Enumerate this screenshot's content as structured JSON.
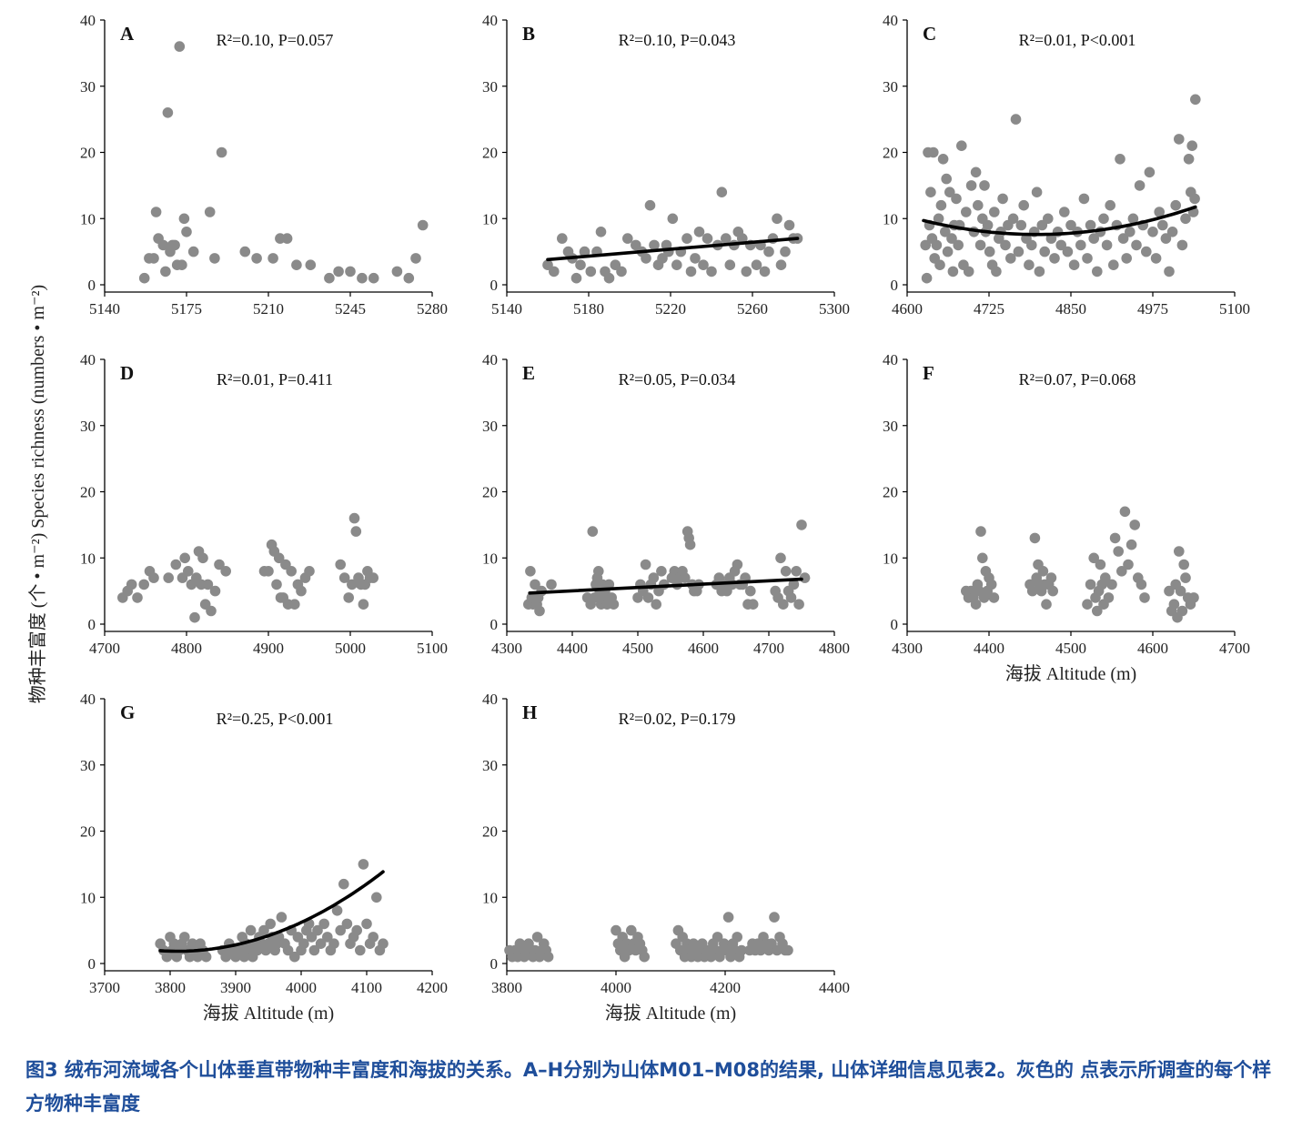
{
  "figure": {
    "y_axis_title": "物种丰富度 (个 • m⁻²)  Species richness (numbers • m⁻²)",
    "x_axis_title": "海拔 Altitude (m)"
  },
  "caption": "图3 绒布河流域各个山体垂直带物种丰富度和海拔的关系。A–H分别为山体M01–M08的结果, 山体详细信息见表2。灰色的 点表示所调查的每个样方物种丰富度",
  "colors": {
    "points": "#8a8a8a",
    "fit_line": "#000000",
    "caption": "#1f4e9a"
  },
  "chart_data": [
    {
      "type": "scatter",
      "letter": "A",
      "stat": "R²=0.10, P=0.057",
      "xlim": [
        5140,
        5280
      ],
      "xticks": [
        5140,
        5175,
        5210,
        5245,
        5280
      ],
      "ylim": [
        0,
        40
      ],
      "yticks": [
        0,
        10,
        20,
        30,
        40
      ],
      "fit": null,
      "x": [
        5157,
        5159,
        5161,
        5162,
        5163,
        5165,
        5166,
        5167,
        5168,
        5169,
        5170,
        5171,
        5172,
        5173,
        5174,
        5175,
        5178,
        5185,
        5187,
        5190,
        5200,
        5205,
        5212,
        5215,
        5218,
        5222,
        5228,
        5236,
        5240,
        5245,
        5250,
        5255,
        5265,
        5270,
        5273,
        5276
      ],
      "y": [
        1,
        4,
        4,
        11,
        7,
        6,
        2,
        26,
        5,
        6,
        6,
        3,
        36,
        3,
        10,
        8,
        5,
        11,
        4,
        20,
        5,
        4,
        4,
        7,
        7,
        3,
        3,
        1,
        2,
        2,
        1,
        1,
        2,
        1,
        4,
        9
      ]
    },
    {
      "type": "scatter",
      "letter": "B",
      "stat": "R²=0.10, P=0.043",
      "xlim": [
        5140,
        5300
      ],
      "xticks": [
        5140,
        5180,
        5220,
        5260,
        5300
      ],
      "ylim": [
        0,
        40
      ],
      "yticks": [
        0,
        10,
        20,
        30,
        40
      ],
      "fit": {
        "kind": "linear",
        "x": [
          5160,
          5282
        ],
        "y": [
          3.8,
          7.0
        ]
      },
      "x": [
        5160,
        5163,
        5167,
        5170,
        5172,
        5174,
        5176,
        5178,
        5181,
        5184,
        5186,
        5188,
        5190,
        5193,
        5196,
        5199,
        5203,
        5206,
        5208,
        5210,
        5212,
        5214,
        5216,
        5218,
        5219,
        5221,
        5223,
        5225,
        5228,
        5230,
        5232,
        5234,
        5236,
        5238,
        5240,
        5243,
        5245,
        5247,
        5249,
        5251,
        5253,
        5255,
        5257,
        5259,
        5262,
        5264,
        5266,
        5268,
        5270,
        5272,
        5274,
        5276,
        5278,
        5280,
        5282
      ],
      "y": [
        3,
        2,
        7,
        5,
        4,
        1,
        3,
        5,
        2,
        5,
        8,
        2,
        1,
        3,
        2,
        7,
        6,
        5,
        4,
        12,
        6,
        3,
        4,
        6,
        5,
        10,
        3,
        5,
        7,
        2,
        4,
        8,
        3,
        7,
        2,
        6,
        14,
        7,
        3,
        6,
        8,
        7,
        2,
        6,
        3,
        6,
        2,
        5,
        7,
        10,
        3,
        5,
        9,
        7,
        7
      ]
    },
    {
      "type": "scatter",
      "letter": "C",
      "stat": "R²=0.01, P<0.001",
      "xlim": [
        4600,
        5100
      ],
      "xticks": [
        4600,
        4725,
        4850,
        4975,
        5100
      ],
      "ylim": [
        0,
        40
      ],
      "yticks": [
        0,
        10,
        20,
        30,
        40
      ],
      "fit": {
        "kind": "quadratic",
        "x0": 4625,
        "x1": 5040,
        "coef": {
          "a": 7.06e-05,
          "b": -0.6774,
          "c": 1632.5
        }
      },
      "x": [
        4628,
        4630,
        4632,
        4634,
        4636,
        4638,
        4640,
        4642,
        4645,
        4648,
        4650,
        4652,
        4655,
        4658,
        4660,
        4662,
        4665,
        4668,
        4670,
        4672,
        4675,
        4678,
        4680,
        4683,
        4686,
        4690,
        4694,
        4698,
        4702,
        4705,
        4708,
        4712,
        4715,
        4718,
        4720,
        4723,
        4726,
        4730,
        4733,
        4736,
        4740,
        4743,
        4746,
        4750,
        4754,
        4758,
        4762,
        4766,
        4770,
        4774,
        4778,
        4782,
        4786,
        4790,
        4794,
        4798,
        4802,
        4806,
        4810,
        4815,
        4820,
        4825,
        4830,
        4835,
        4840,
        4845,
        4850,
        4855,
        4860,
        4865,
        4870,
        4875,
        4880,
        4885,
        4890,
        4895,
        4900,
        4905,
        4910,
        4915,
        4920,
        4925,
        4930,
        4935,
        4940,
        4945,
        4950,
        4955,
        4960,
        4965,
        4970,
        4975,
        4980,
        4985,
        4990,
        4995,
        5000,
        5005,
        5010,
        5015,
        5020,
        5025,
        5030,
        5033,
        5035,
        5037,
        5039,
        5040
      ],
      "y": [
        6,
        1,
        20,
        9,
        14,
        7,
        20,
        4,
        6,
        10,
        3,
        12,
        19,
        8,
        16,
        5,
        14,
        7,
        2,
        9,
        13,
        6,
        9,
        21,
        3,
        11,
        2,
        15,
        8,
        17,
        12,
        6,
        10,
        15,
        8,
        9,
        5,
        3,
        11,
        2,
        7,
        8,
        13,
        6,
        9,
        4,
        10,
        25,
        5,
        9,
        12,
        7,
        3,
        6,
        8,
        14,
        2,
        9,
        5,
        10,
        7,
        4,
        8,
        6,
        11,
        5,
        9,
        3,
        8,
        6,
        13,
        4,
        9,
        7,
        2,
        8,
        10,
        6,
        12,
        3,
        9,
        19,
        7,
        4,
        8,
        10,
        6,
        15,
        9,
        5,
        17,
        8,
        4,
        11,
        9,
        7,
        2,
        8,
        12,
        22,
        6,
        10,
        19,
        14,
        21,
        11,
        13,
        28
      ]
    },
    {
      "type": "scatter",
      "letter": "D",
      "stat": "R²=0.01, P=0.411",
      "xlim": [
        4700,
        5100
      ],
      "xticks": [
        4700,
        4800,
        4900,
        5000,
        5100
      ],
      "ylim": [
        0,
        40
      ],
      "yticks": [
        0,
        10,
        20,
        30,
        40
      ],
      "fit": null,
      "x": [
        4722,
        4728,
        4733,
        4740,
        4748,
        4755,
        4760,
        4778,
        4787,
        4795,
        4798,
        4802,
        4806,
        4810,
        4812,
        4815,
        4818,
        4820,
        4823,
        4826,
        4830,
        4835,
        4840,
        4848,
        4895,
        4900,
        4904,
        4907,
        4910,
        4913,
        4915,
        4918,
        4921,
        4924,
        4928,
        4932,
        4936,
        4940,
        4945,
        4950,
        4988,
        4993,
        4998,
        5002,
        5005,
        5007,
        5010,
        5013,
        5016,
        5018,
        5021,
        5024,
        5028
      ],
      "y": [
        4,
        5,
        6,
        4,
        6,
        8,
        7,
        7,
        9,
        7,
        10,
        8,
        6,
        1,
        7,
        11,
        6,
        10,
        3,
        6,
        2,
        5,
        9,
        8,
        8,
        8,
        12,
        11,
        6,
        10,
        4,
        4,
        9,
        3,
        8,
        3,
        6,
        5,
        7,
        8,
        9,
        7,
        4,
        6,
        16,
        14,
        7,
        6,
        3,
        6,
        8,
        7,
        7
      ]
    },
    {
      "type": "scatter",
      "letter": "E",
      "stat": "R²=0.05, P=0.034",
      "xlim": [
        4300,
        4800
      ],
      "xticks": [
        4300,
        4400,
        4500,
        4600,
        4700,
        4800
      ],
      "ylim": [
        0,
        40
      ],
      "yticks": [
        0,
        10,
        20,
        30,
        40
      ],
      "fit": {
        "kind": "linear",
        "x": [
          4335,
          4750
        ],
        "y": [
          4.7,
          6.8
        ]
      },
      "x": [
        4333,
        4336,
        4338,
        4340,
        4343,
        4346,
        4348,
        4350,
        4353,
        4368,
        4423,
        4428,
        4431,
        4434,
        4436,
        4438,
        4440,
        4442,
        4444,
        4446,
        4448,
        4450,
        4453,
        4456,
        4460,
        4463,
        4500,
        4504,
        4508,
        4512,
        4516,
        4520,
        4524,
        4528,
        4532,
        4536,
        4540,
        4552,
        4556,
        4560,
        4564,
        4568,
        4572,
        4576,
        4578,
        4580,
        4583,
        4586,
        4590,
        4593,
        4620,
        4624,
        4628,
        4632,
        4636,
        4640,
        4644,
        4648,
        4652,
        4656,
        4660,
        4664,
        4668,
        4672,
        4676,
        4710,
        4714,
        4718,
        4722,
        4726,
        4730,
        4734,
        4738,
        4742,
        4746,
        4750,
        4755
      ],
      "y": [
        3,
        8,
        4,
        3,
        6,
        3,
        4,
        2,
        5,
        6,
        4,
        3,
        14,
        4,
        6,
        7,
        8,
        5,
        3,
        6,
        4,
        5,
        3,
        6,
        4,
        3,
        4,
        6,
        5,
        9,
        4,
        6,
        7,
        3,
        5,
        8,
        6,
        7,
        8,
        6,
        7,
        8,
        7,
        14,
        13,
        12,
        6,
        5,
        5,
        6,
        6,
        7,
        5,
        6,
        5,
        7,
        6,
        8,
        9,
        6,
        6,
        7,
        3,
        5,
        3,
        5,
        4,
        10,
        3,
        8,
        5,
        4,
        6,
        8,
        3,
        15,
        7
      ]
    },
    {
      "type": "scatter",
      "letter": "F",
      "stat": "R²=0.07, P=0.068",
      "xlim": [
        4300,
        4700
      ],
      "xticks": [
        4300,
        4400,
        4500,
        4600,
        4700
      ],
      "ylim": [
        0,
        40
      ],
      "yticks": [
        0,
        10,
        20,
        30,
        40
      ],
      "fit": null,
      "x": [
        4372,
        4375,
        4378,
        4381,
        4384,
        4386,
        4388,
        4390,
        4392,
        4394,
        4396,
        4398,
        4400,
        4403,
        4406,
        4450,
        4453,
        4456,
        4458,
        4460,
        4462,
        4464,
        4466,
        4468,
        4470,
        4473,
        4476,
        4478,
        4520,
        4524,
        4528,
        4530,
        4532,
        4534,
        4536,
        4538,
        4540,
        4542,
        4546,
        4550,
        4554,
        4558,
        4562,
        4566,
        4570,
        4574,
        4578,
        4582,
        4586,
        4590,
        4620,
        4623,
        4626,
        4628,
        4630,
        4632,
        4634,
        4636,
        4638,
        4640,
        4643,
        4646,
        4650
      ],
      "y": [
        5,
        4,
        5,
        4,
        3,
        6,
        5,
        14,
        10,
        4,
        8,
        5,
        7,
        6,
        4,
        6,
        5,
        13,
        7,
        9,
        6,
        5,
        8,
        6,
        3,
        6,
        7,
        5,
        3,
        6,
        10,
        4,
        2,
        5,
        9,
        6,
        3,
        7,
        4,
        6,
        13,
        11,
        8,
        17,
        9,
        12,
        15,
        7,
        6,
        4,
        5,
        2,
        3,
        6,
        1,
        11,
        5,
        2,
        9,
        7,
        4,
        3,
        4
      ]
    },
    {
      "type": "scatter",
      "letter": "G",
      "stat": "R²=0.25, P<0.001",
      "xlim": [
        3700,
        4200
      ],
      "xticks": [
        3700,
        3800,
        3900,
        4000,
        4100,
        4200
      ],
      "ylim": [
        0,
        40
      ],
      "yticks": [
        0,
        10,
        20,
        30,
        40
      ],
      "fit": {
        "kind": "quadratic",
        "x0": 3785,
        "x1": 4125,
        "coef": {
          "a": 0.0001217,
          "b": -0.9276,
          "c": 1769.4
        }
      },
      "x": [
        3785,
        3790,
        3795,
        3800,
        3803,
        3806,
        3810,
        3814,
        3818,
        3822,
        3826,
        3830,
        3834,
        3838,
        3842,
        3846,
        3850,
        3855,
        3880,
        3885,
        3890,
        3895,
        3900,
        3905,
        3910,
        3913,
        3916,
        3920,
        3923,
        3926,
        3930,
        3933,
        3936,
        3940,
        3943,
        3946,
        3950,
        3953,
        3956,
        3960,
        3963,
        3966,
        3970,
        3975,
        3980,
        3985,
        3990,
        3995,
        4000,
        4004,
        4008,
        4012,
        4016,
        4020,
        4025,
        4030,
        4035,
        4040,
        4045,
        4050,
        4055,
        4060,
        4065,
        4070,
        4075,
        4080,
        4085,
        4090,
        4095,
        4100,
        4105,
        4110,
        4115,
        4120,
        4125
      ],
      "y": [
        3,
        2,
        1,
        4,
        2,
        3,
        1,
        2,
        3,
        4,
        2,
        1,
        3,
        2,
        1,
        3,
        2,
        1,
        2,
        1,
        3,
        2,
        1,
        2,
        4,
        1,
        3,
        2,
        5,
        1,
        3,
        2,
        4,
        3,
        5,
        2,
        3,
        6,
        4,
        2,
        3,
        4,
        7,
        3,
        2,
        5,
        1,
        4,
        2,
        3,
        5,
        6,
        4,
        2,
        5,
        3,
        6,
        4,
        2,
        3,
        8,
        5,
        12,
        6,
        3,
        4,
        5,
        2,
        15,
        6,
        3,
        4,
        10,
        2,
        3
      ]
    },
    {
      "type": "scatter",
      "letter": "H",
      "stat": "R²=0.02, P=0.179",
      "xlim": [
        3800,
        4400
      ],
      "xticks": [
        3800,
        4000,
        4200,
        4400
      ],
      "ylim": [
        0,
        40
      ],
      "yticks": [
        0,
        10,
        20,
        30,
        40
      ],
      "fit": null,
      "x": [
        3805,
        3810,
        3815,
        3820,
        3824,
        3828,
        3832,
        3836,
        3840,
        3844,
        3848,
        3852,
        3856,
        3860,
        3864,
        3868,
        3872,
        3876,
        4000,
        4004,
        4008,
        4012,
        4016,
        4020,
        4024,
        4028,
        4032,
        4036,
        4040,
        4044,
        4048,
        4052,
        4110,
        4114,
        4118,
        4122,
        4126,
        4130,
        4134,
        4138,
        4142,
        4146,
        4150,
        4154,
        4158,
        4162,
        4170,
        4174,
        4178,
        4182,
        4186,
        4190,
        4194,
        4198,
        4202,
        4206,
        4210,
        4214,
        4218,
        4222,
        4226,
        4230,
        4245,
        4250,
        4255,
        4260,
        4265,
        4270,
        4275,
        4280,
        4285,
        4290,
        4295,
        4300,
        4305,
        4310,
        4315
      ],
      "y": [
        2,
        1,
        2,
        1,
        3,
        2,
        1,
        2,
        3,
        2,
        1,
        2,
        4,
        1,
        2,
        3,
        2,
        1,
        5,
        3,
        2,
        4,
        1,
        3,
        2,
        5,
        3,
        2,
        4,
        3,
        2,
        1,
        3,
        5,
        2,
        4,
        1,
        3,
        2,
        1,
        3,
        2,
        1,
        2,
        3,
        1,
        2,
        1,
        3,
        2,
        4,
        1,
        2,
        3,
        2,
        7,
        1,
        3,
        2,
        4,
        1,
        2,
        2,
        3,
        2,
        3,
        2,
        4,
        3,
        2,
        3,
        7,
        2,
        4,
        3,
        2,
        2
      ]
    }
  ]
}
